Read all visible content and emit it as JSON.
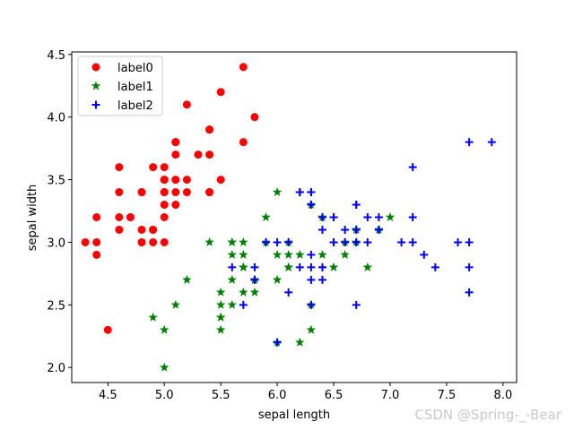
{
  "chart_data": {
    "type": "scatter",
    "xlabel": "sepal length",
    "ylabel": "sepal width",
    "xlim": [
      4.18,
      8.12
    ],
    "ylim": [
      1.88,
      4.52
    ],
    "xticks": [
      "4.5",
      "5.0",
      "5.5",
      "6.0",
      "6.5",
      "7.0",
      "7.5",
      "8.0"
    ],
    "yticks": [
      "2.0",
      "2.5",
      "3.0",
      "3.5",
      "4.0",
      "4.5"
    ],
    "legend_position": "top-left",
    "grid": false,
    "series": [
      {
        "name": "label0",
        "marker": "circle",
        "color": "#ff0000",
        "points": [
          [
            5.1,
            3.5
          ],
          [
            4.9,
            3.0
          ],
          [
            4.7,
            3.2
          ],
          [
            4.6,
            3.1
          ],
          [
            5.0,
            3.6
          ],
          [
            5.4,
            3.9
          ],
          [
            4.6,
            3.4
          ],
          [
            5.0,
            3.4
          ],
          [
            4.4,
            2.9
          ],
          [
            4.9,
            3.1
          ],
          [
            5.4,
            3.7
          ],
          [
            4.8,
            3.4
          ],
          [
            4.8,
            3.0
          ],
          [
            4.3,
            3.0
          ],
          [
            5.8,
            4.0
          ],
          [
            5.7,
            4.4
          ],
          [
            5.4,
            3.9
          ],
          [
            5.1,
            3.5
          ],
          [
            5.7,
            3.8
          ],
          [
            5.1,
            3.8
          ],
          [
            5.4,
            3.4
          ],
          [
            5.1,
            3.7
          ],
          [
            4.6,
            3.6
          ],
          [
            5.1,
            3.3
          ],
          [
            4.8,
            3.4
          ],
          [
            5.0,
            3.0
          ],
          [
            5.0,
            3.4
          ],
          [
            5.2,
            3.5
          ],
          [
            5.2,
            3.4
          ],
          [
            4.7,
            3.2
          ],
          [
            4.8,
            3.1
          ],
          [
            5.4,
            3.4
          ],
          [
            5.2,
            4.1
          ],
          [
            5.5,
            4.2
          ],
          [
            4.9,
            3.1
          ],
          [
            5.0,
            3.2
          ],
          [
            5.5,
            3.5
          ],
          [
            4.9,
            3.6
          ],
          [
            4.4,
            3.0
          ],
          [
            5.1,
            3.4
          ],
          [
            5.0,
            3.5
          ],
          [
            4.5,
            2.3
          ],
          [
            4.4,
            3.2
          ],
          [
            5.0,
            3.5
          ],
          [
            5.1,
            3.8
          ],
          [
            4.8,
            3.0
          ],
          [
            5.1,
            3.8
          ],
          [
            4.6,
            3.2
          ],
          [
            5.3,
            3.7
          ],
          [
            5.0,
            3.3
          ]
        ]
      },
      {
        "name": "label1",
        "marker": "star",
        "color": "#008000",
        "points": [
          [
            7.0,
            3.2
          ],
          [
            6.4,
            3.2
          ],
          [
            6.9,
            3.1
          ],
          [
            5.5,
            2.3
          ],
          [
            6.5,
            2.8
          ],
          [
            5.7,
            2.8
          ],
          [
            6.3,
            3.3
          ],
          [
            4.9,
            2.4
          ],
          [
            6.6,
            2.9
          ],
          [
            5.2,
            2.7
          ],
          [
            5.0,
            2.0
          ],
          [
            5.9,
            3.0
          ],
          [
            6.0,
            2.2
          ],
          [
            6.1,
            2.9
          ],
          [
            5.6,
            2.9
          ],
          [
            6.7,
            3.1
          ],
          [
            5.6,
            3.0
          ],
          [
            5.8,
            2.7
          ],
          [
            6.2,
            2.2
          ],
          [
            5.6,
            2.5
          ],
          [
            5.9,
            3.2
          ],
          [
            6.1,
            2.8
          ],
          [
            6.3,
            2.5
          ],
          [
            6.1,
            2.8
          ],
          [
            6.4,
            2.9
          ],
          [
            6.6,
            3.0
          ],
          [
            6.8,
            2.8
          ],
          [
            6.7,
            3.0
          ],
          [
            6.0,
            2.9
          ],
          [
            5.7,
            2.6
          ],
          [
            5.5,
            2.4
          ],
          [
            5.5,
            2.4
          ],
          [
            5.8,
            2.7
          ],
          [
            6.0,
            2.7
          ],
          [
            5.4,
            3.0
          ],
          [
            6.0,
            3.4
          ],
          [
            6.7,
            3.1
          ],
          [
            6.3,
            2.3
          ],
          [
            5.6,
            3.0
          ],
          [
            5.5,
            2.5
          ],
          [
            5.5,
            2.6
          ],
          [
            6.1,
            3.0
          ],
          [
            5.8,
            2.6
          ],
          [
            5.0,
            2.3
          ],
          [
            5.6,
            2.7
          ],
          [
            5.7,
            3.0
          ],
          [
            5.7,
            2.9
          ],
          [
            6.2,
            2.9
          ],
          [
            5.1,
            2.5
          ],
          [
            5.7,
            2.8
          ]
        ]
      },
      {
        "name": "label2",
        "marker": "plus",
        "color": "#0000ff",
        "points": [
          [
            6.3,
            3.3
          ],
          [
            5.8,
            2.7
          ],
          [
            7.1,
            3.0
          ],
          [
            6.3,
            2.9
          ],
          [
            6.5,
            3.0
          ],
          [
            7.6,
            3.0
          ],
          [
            7.3,
            2.9
          ],
          [
            6.7,
            2.5
          ],
          [
            7.2,
            3.6
          ],
          [
            6.5,
            3.2
          ],
          [
            6.4,
            2.7
          ],
          [
            6.8,
            3.0
          ],
          [
            5.7,
            2.5
          ],
          [
            5.8,
            2.8
          ],
          [
            6.4,
            3.2
          ],
          [
            7.7,
            3.8
          ],
          [
            7.7,
            2.6
          ],
          [
            6.0,
            2.2
          ],
          [
            6.9,
            3.2
          ],
          [
            5.6,
            2.8
          ],
          [
            7.7,
            2.8
          ],
          [
            6.3,
            2.7
          ],
          [
            6.7,
            3.3
          ],
          [
            7.2,
            3.2
          ],
          [
            6.2,
            2.8
          ],
          [
            6.1,
            3.0
          ],
          [
            6.4,
            2.8
          ],
          [
            7.2,
            3.0
          ],
          [
            7.4,
            2.8
          ],
          [
            7.9,
            3.8
          ],
          [
            6.4,
            2.8
          ],
          [
            6.3,
            2.8
          ],
          [
            6.1,
            2.6
          ],
          [
            7.7,
            3.0
          ],
          [
            6.3,
            3.4
          ],
          [
            6.4,
            3.1
          ],
          [
            6.0,
            3.0
          ],
          [
            6.9,
            3.1
          ],
          [
            6.7,
            3.1
          ],
          [
            6.9,
            3.1
          ],
          [
            5.8,
            2.7
          ],
          [
            6.8,
            3.2
          ],
          [
            6.7,
            3.3
          ],
          [
            6.7,
            3.0
          ],
          [
            6.3,
            2.5
          ],
          [
            6.5,
            3.0
          ],
          [
            6.2,
            3.4
          ],
          [
            5.9,
            3.0
          ],
          [
            6.5,
            3.2
          ],
          [
            6.6,
            3.0
          ],
          [
            6.2,
            3.4
          ],
          [
            6.3,
            3.4
          ],
          [
            6.4,
            3.2
          ],
          [
            6.6,
            3.1
          ]
        ]
      }
    ]
  },
  "watermark": "CSDN @Spring-_-Bear"
}
